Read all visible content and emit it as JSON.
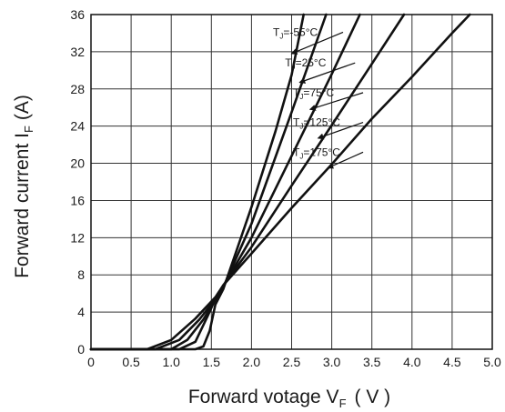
{
  "chart_data": {
    "type": "line",
    "xlabel": {
      "main": "Forward votage V",
      "sub": "F",
      "unit": "( V )"
    },
    "ylabel": {
      "main": "Forward current I",
      "sub": "F",
      "unit": "(A)"
    },
    "xlim": [
      0,
      5.0
    ],
    "ylim": [
      0,
      36
    ],
    "grid": true,
    "x_ticks": [
      "0",
      "0.5",
      "1.0",
      "1.5",
      "2.0",
      "2.5",
      "3.0",
      "3.5",
      "4.0",
      "4.5",
      "5.0"
    ],
    "y_ticks": [
      "0",
      "4",
      "8",
      "12",
      "16",
      "20",
      "24",
      "28",
      "32",
      "36"
    ],
    "series": [
      {
        "name": "T_J=-55°C",
        "label_prefix": "T",
        "label_sub": "J",
        "label_suffix": "=-55°C",
        "label_anchor": [
          3.05,
          34.1
        ],
        "label_target": [
          2.5,
          31.8
        ],
        "points": [
          [
            0,
            0
          ],
          [
            1.3,
            0
          ],
          [
            1.4,
            0.3
          ],
          [
            1.48,
            2.0
          ],
          [
            1.55,
            4.8
          ],
          [
            1.65,
            6.5
          ],
          [
            2.0,
            15.3
          ],
          [
            2.3,
            23.5
          ],
          [
            2.5,
            29.5
          ],
          [
            2.65,
            36
          ]
        ]
      },
      {
        "name": "T_J=25°C",
        "label_prefix": "T",
        "label_sub": "J",
        "label_suffix": "=25°C",
        "label_anchor": [
          3.2,
          30.8
        ],
        "label_target": [
          2.6,
          28.7
        ],
        "points": [
          [
            0,
            0
          ],
          [
            1.1,
            0
          ],
          [
            1.3,
            0.8
          ],
          [
            1.45,
            3.5
          ],
          [
            1.55,
            5.4
          ],
          [
            1.65,
            6.7
          ],
          [
            2.0,
            13.5
          ],
          [
            2.5,
            25.5
          ],
          [
            2.93,
            36
          ]
        ]
      },
      {
        "name": "T_J=75°C",
        "label_prefix": "T",
        "label_sub": "J",
        "label_suffix": "=75°C",
        "label_anchor": [
          3.3,
          27.6
        ],
        "label_target": [
          2.73,
          25.8
        ],
        "points": [
          [
            0,
            0
          ],
          [
            1.0,
            0
          ],
          [
            1.2,
            1.0
          ],
          [
            1.4,
            3.2
          ],
          [
            1.55,
            5.3
          ],
          [
            1.65,
            6.8
          ],
          [
            2.0,
            12.0
          ],
          [
            2.5,
            20.8
          ],
          [
            3.0,
            29.6
          ],
          [
            3.35,
            36
          ]
        ]
      },
      {
        "name": "T_J=125°C",
        "label_prefix": "T",
        "label_sub": "J",
        "label_suffix": "=125°C",
        "label_anchor": [
          3.3,
          24.4
        ],
        "label_target": [
          2.83,
          22.7
        ],
        "points": [
          [
            0,
            0
          ],
          [
            0.8,
            0
          ],
          [
            1.1,
            1.0
          ],
          [
            1.35,
            3.2
          ],
          [
            1.55,
            5.4
          ],
          [
            1.65,
            6.9
          ],
          [
            2.0,
            11.0
          ],
          [
            2.5,
            17.6
          ],
          [
            3.0,
            24.1
          ],
          [
            3.5,
            30.7
          ],
          [
            3.9,
            36
          ]
        ]
      },
      {
        "name": "T_J=175°C",
        "label_prefix": "T",
        "label_sub": "J",
        "label_suffix": "=175°C",
        "label_anchor": [
          3.3,
          21.2
        ],
        "label_target": [
          2.95,
          19.5
        ],
        "points": [
          [
            0,
            0
          ],
          [
            0.7,
            0
          ],
          [
            1.0,
            1.0
          ],
          [
            1.3,
            3.3
          ],
          [
            1.55,
            5.6
          ],
          [
            1.65,
            6.9
          ],
          [
            2.0,
            10.3
          ],
          [
            2.5,
            15.2
          ],
          [
            3.0,
            19.9
          ],
          [
            3.5,
            24.8
          ],
          [
            4.0,
            29.3
          ],
          [
            4.5,
            34.0
          ],
          [
            4.72,
            36
          ]
        ]
      }
    ]
  }
}
